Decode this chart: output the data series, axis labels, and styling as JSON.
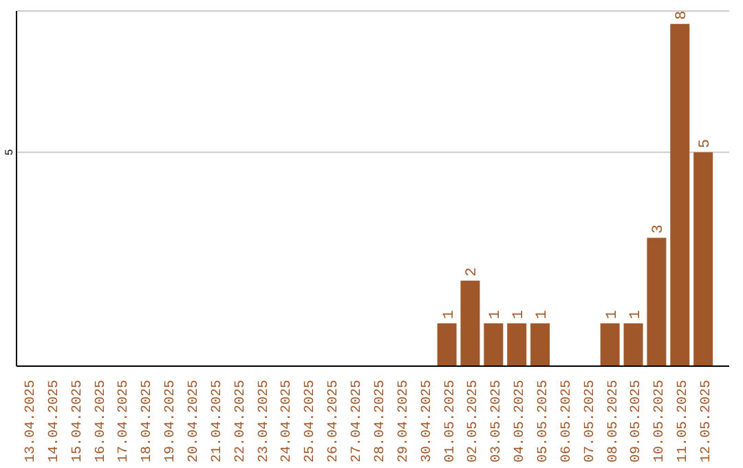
{
  "chart_data": {
    "type": "bar",
    "categories": [
      "13.04.2025",
      "14.04.2025",
      "15.04.2025",
      "16.04.2025",
      "17.04.2025",
      "18.04.2025",
      "19.04.2025",
      "20.04.2025",
      "21.04.2025",
      "22.04.2025",
      "23.04.2025",
      "24.04.2025",
      "25.04.2025",
      "26.04.2025",
      "27.04.2025",
      "28.04.2025",
      "29.04.2025",
      "30.04.2025",
      "01.05.2025",
      "02.05.2025",
      "03.05.2025",
      "04.05.2025",
      "05.05.2025",
      "06.05.2025",
      "07.05.2025",
      "08.05.2025",
      "09.05.2025",
      "10.05.2025",
      "11.05.2025",
      "12.05.2025"
    ],
    "values": [
      null,
      null,
      null,
      null,
      null,
      null,
      null,
      null,
      null,
      null,
      null,
      null,
      null,
      null,
      null,
      null,
      null,
      null,
      1,
      2,
      1,
      1,
      1,
      null,
      null,
      1,
      1,
      3,
      8,
      5
    ],
    "color": "#a0582a",
    "ylim": [
      0,
      8.3
    ],
    "yticks": [
      5
    ],
    "grid": "y",
    "data_labels": true
  }
}
